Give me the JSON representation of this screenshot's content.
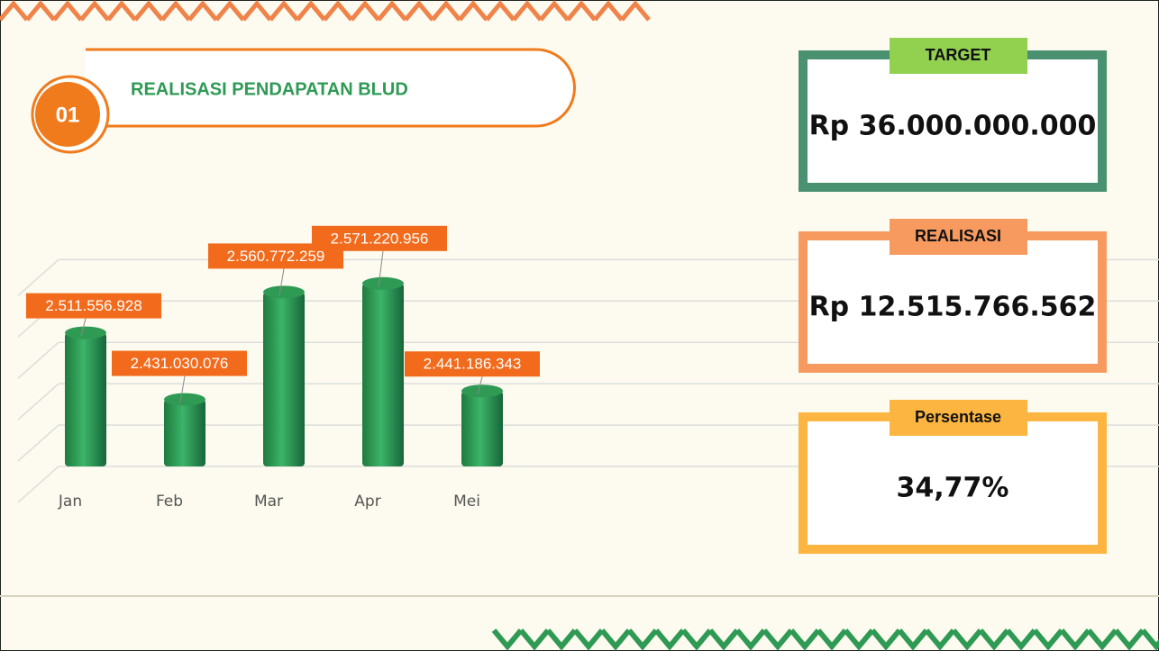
{
  "header": {
    "number": "01",
    "title": "REALISASI PENDAPATAN BLUD"
  },
  "chart_data": {
    "type": "bar",
    "categories": [
      "Jan",
      "Feb",
      "Mar",
      "Apr",
      "Mei"
    ],
    "values": [
      2511556928,
      2431030076,
      2560772259,
      2571220956,
      2441186343
    ],
    "value_labels": [
      "2.511.556.928",
      "2.431.030.076",
      "2.560.772.259",
      "2.571.220.956",
      "2.441.186.343"
    ],
    "color": "#2e9a54",
    "ylim": [
      2350000000,
      2620000000
    ],
    "yticks": [
      2350000000,
      2400000000,
      2450000000,
      2500000000,
      2550000000,
      2600000000
    ],
    "grid": true
  },
  "cards": [
    {
      "label": "TARGET",
      "value": "Rp 36.000.000.000",
      "color": "#4a9172",
      "tab": "#92d050"
    },
    {
      "label": "REALISASI",
      "value": "Rp 12.515.766.562",
      "color": "#f79a5f",
      "tab": "#f79a5f"
    },
    {
      "label": "Persentase",
      "value": "34,77%",
      "color": "#fbb540",
      "tab": "#fbb540"
    }
  ]
}
